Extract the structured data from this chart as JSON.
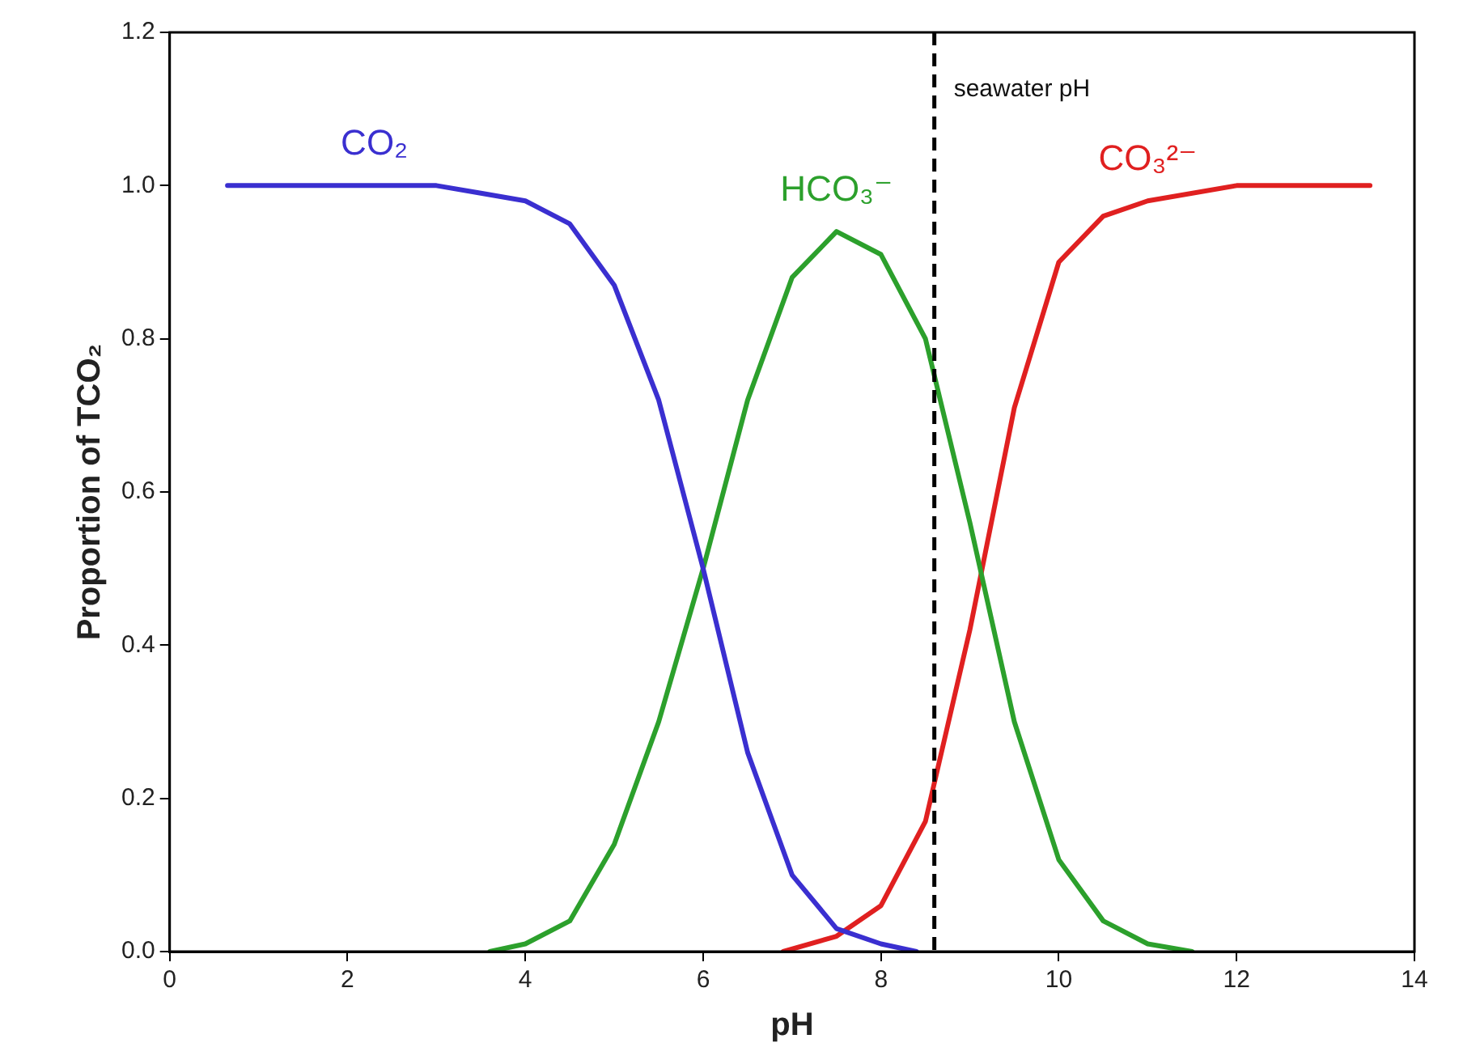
{
  "chart_data": {
    "type": "line",
    "xlabel": "pH",
    "ylabel": "Proportion of TCO₂",
    "xlim": [
      0,
      14
    ],
    "xticks": [
      0,
      2,
      4,
      6,
      8,
      10,
      12,
      14
    ],
    "ylim": [
      0,
      1.2
    ],
    "yticks": [
      {
        "value": 0,
        "label": "0.0"
      },
      {
        "value": 0.2,
        "label": "0.2"
      },
      {
        "value": 0.4,
        "label": "0.4"
      },
      {
        "value": 0.6,
        "label": "0.6"
      },
      {
        "value": 0.8,
        "label": "0.8"
      },
      {
        "value": 1,
        "label": "1.0"
      },
      {
        "value": 1.2,
        "label": "1.2"
      }
    ],
    "grid": false,
    "legend": false,
    "marker": "none",
    "line_style": "solid",
    "series": [
      {
        "name": "CO₂",
        "color": "#3a2fd0",
        "x": [
          0.65,
          2,
          3,
          3.5,
          4,
          4.5,
          5,
          5.5,
          6,
          6.5,
          7,
          7.5,
          8,
          8.4
        ],
        "values": [
          1,
          1,
          1,
          0.99,
          0.98,
          0.95,
          0.87,
          0.72,
          0.5,
          0.26,
          0.1,
          0.03,
          0.01,
          0
        ]
      },
      {
        "name": "HCO₃⁻",
        "color": "#2ca02c",
        "x": [
          3.6,
          4,
          4.5,
          5,
          5.5,
          6,
          6.5,
          7,
          7.5,
          8,
          8.5,
          9,
          9.5,
          10,
          10.5,
          11,
          11.5
        ],
        "values": [
          0,
          0.01,
          0.04,
          0.14,
          0.3,
          0.5,
          0.72,
          0.88,
          0.94,
          0.91,
          0.8,
          0.56,
          0.3,
          0.12,
          0.04,
          0.01,
          0
        ]
      },
      {
        "name": "CO₃²⁻",
        "color": "#e02020",
        "x": [
          6.9,
          7.5,
          8,
          8.5,
          9,
          9.5,
          10,
          10.5,
          11,
          12,
          13,
          13.5
        ],
        "values": [
          0,
          0.02,
          0.06,
          0.17,
          0.42,
          0.71,
          0.9,
          0.96,
          0.98,
          1,
          1,
          1
        ]
      }
    ],
    "ref_lines": [
      {
        "axis": "x",
        "value": 8.6,
        "label": "seawater pH",
        "color": "#000000",
        "line_style": "dashed"
      }
    ]
  }
}
